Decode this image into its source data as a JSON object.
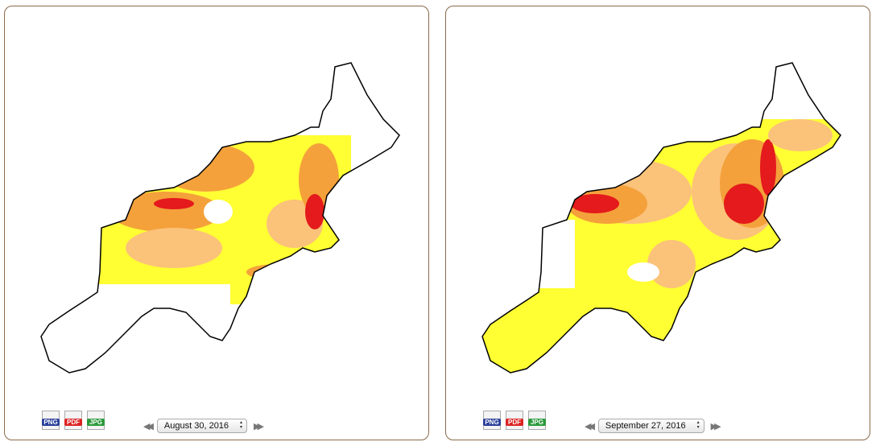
{
  "panels": [
    {
      "date": "August 30, 2016",
      "exports": [
        "PNG",
        "PDF",
        "JPG"
      ]
    },
    {
      "date": "September 27, 2016",
      "exports": [
        "PNG",
        "PDF",
        "JPG"
      ]
    }
  ]
}
